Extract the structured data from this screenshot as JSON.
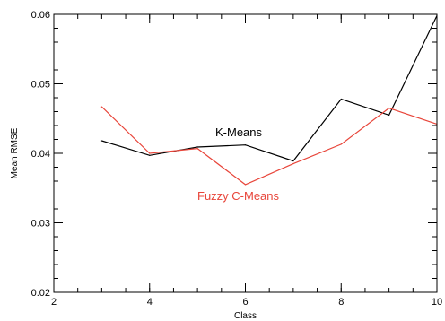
{
  "chart_data": {
    "type": "line",
    "title": "",
    "xlabel": "Class",
    "ylabel": "Mean RMSE",
    "xlim": [
      2,
      10
    ],
    "ylim": [
      0.02,
      0.06
    ],
    "xticks": [
      2,
      4,
      6,
      8,
      10
    ],
    "xtick_labels": [
      "2",
      "4",
      "6",
      "8",
      "10"
    ],
    "yticks": [
      0.02,
      0.03,
      0.04,
      0.05,
      0.06
    ],
    "ytick_labels": [
      "0.02",
      "0.03",
      "0.04",
      "0.05",
      "0.06"
    ],
    "x_minor_step": 0.5,
    "y_minor_step": 0.002,
    "grid": false,
    "series": [
      {
        "name": "K-Means",
        "color": "#000000",
        "x": [
          3,
          4,
          5,
          6,
          7,
          8,
          9,
          10
        ],
        "y": [
          0.0418,
          0.0397,
          0.0409,
          0.0412,
          0.0389,
          0.0478,
          0.0455,
          0.0598
        ]
      },
      {
        "name": "Fuzzy C-Means",
        "color": "#e8453a",
        "x": [
          3,
          4,
          5,
          6,
          7,
          8,
          9,
          10
        ],
        "y": [
          0.0467,
          0.04,
          0.0407,
          0.0355,
          0.0385,
          0.0413,
          0.0465,
          0.0442
        ]
      }
    ]
  }
}
